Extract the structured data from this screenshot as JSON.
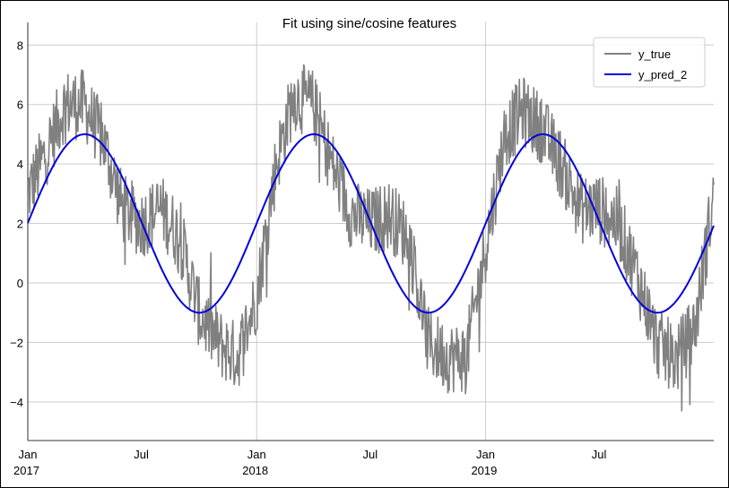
{
  "chart_data": {
    "type": "line",
    "title": "Fit using sine/cosine features",
    "xlabel": "",
    "ylabel": "",
    "x_range": [
      "2017-01-01",
      "2019-12-31"
    ],
    "ylim": [
      -5.3,
      8.4
    ],
    "y_ticks": [
      -4,
      -2,
      0,
      2,
      4,
      6,
      8
    ],
    "y_tick_labels": [
      "−4",
      "−2",
      "0",
      "2",
      "4",
      "6",
      "8"
    ],
    "x_ticks": [
      {
        "date": "2017-01-01",
        "label": "Jan",
        "sublabel": "2017"
      },
      {
        "date": "2017-07-01",
        "label": "Jul",
        "sublabel": ""
      },
      {
        "date": "2018-01-01",
        "label": "Jan",
        "sublabel": "2018"
      },
      {
        "date": "2018-07-01",
        "label": "Jul",
        "sublabel": ""
      },
      {
        "date": "2019-01-01",
        "label": "Jan",
        "sublabel": "2019"
      },
      {
        "date": "2019-07-01",
        "label": "Jul",
        "sublabel": ""
      }
    ],
    "grid": true,
    "legend_position": "upper right",
    "series": [
      {
        "name": "y_true",
        "color": "#808080",
        "style": "noisy daily values",
        "x": [
          "2017-01-01",
          "2017-02-01",
          "2017-03-01",
          "2017-04-01",
          "2017-05-01",
          "2017-06-01",
          "2017-07-01",
          "2017-08-01",
          "2017-09-01",
          "2017-10-01",
          "2017-11-01",
          "2017-12-01",
          "2018-01-01",
          "2018-02-01",
          "2018-03-01",
          "2018-04-01",
          "2018-05-01",
          "2018-06-01",
          "2018-07-01",
          "2018-08-01",
          "2018-09-01",
          "2018-10-01",
          "2018-11-01",
          "2018-12-01",
          "2019-01-01",
          "2019-02-01",
          "2019-03-01",
          "2019-04-01",
          "2019-05-01",
          "2019-06-01",
          "2019-07-01",
          "2019-08-01",
          "2019-09-01",
          "2019-10-01",
          "2019-11-01",
          "2019-12-01",
          "2019-12-31"
        ],
        "values": [
          3.0,
          4.5,
          6.0,
          6.0,
          4.8,
          2.5,
          2.0,
          2.5,
          1.5,
          -1.0,
          -2.0,
          -2.5,
          -0.5,
          4.0,
          6.3,
          6.0,
          4.0,
          2.3,
          2.0,
          2.3,
          1.5,
          -2.0,
          -2.5,
          -2.5,
          1.2,
          5.0,
          5.8,
          5.2,
          4.0,
          2.5,
          2.5,
          2.0,
          0.2,
          -2.0,
          -2.6,
          -1.5,
          3.0
        ]
      },
      {
        "name": "y_pred_2",
        "color": "#0000dd",
        "style": "smooth sinusoid",
        "mean": 2.0,
        "amplitude": 3.0,
        "period_days": 365.25,
        "peak_date": "2017-04-02",
        "x": [
          "2017-01-01",
          "2017-04-02",
          "2017-07-02",
          "2017-10-01",
          "2018-01-01",
          "2018-04-02",
          "2018-07-02",
          "2018-10-01",
          "2019-01-01",
          "2019-04-02",
          "2019-07-02",
          "2019-10-01",
          "2019-12-31"
        ],
        "values": [
          2.0,
          5.0,
          2.0,
          -1.0,
          2.0,
          5.0,
          2.0,
          -1.0,
          2.0,
          5.0,
          2.0,
          -1.0,
          2.0
        ]
      }
    ]
  }
}
